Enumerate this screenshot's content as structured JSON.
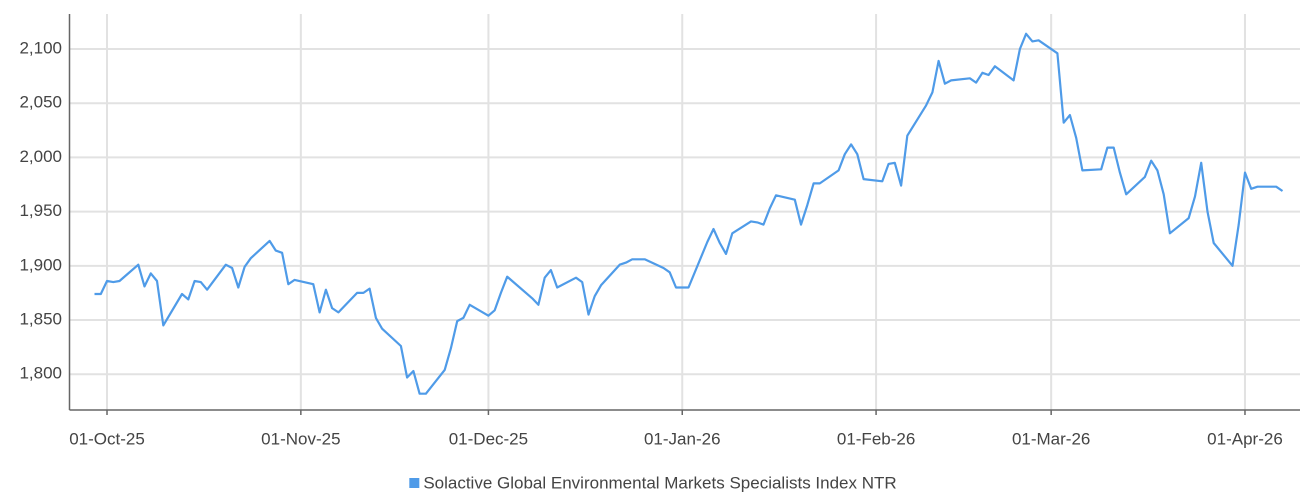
{
  "chart_data": {
    "type": "line",
    "x": [
      "2025-09-29",
      "2025-09-30",
      "2025-10-01",
      "2025-10-02",
      "2025-10-03",
      "2025-10-06",
      "2025-10-07",
      "2025-10-08",
      "2025-10-09",
      "2025-10-10",
      "2025-10-13",
      "2025-10-14",
      "2025-10-15",
      "2025-10-16",
      "2025-10-17",
      "2025-10-20",
      "2025-10-21",
      "2025-10-22",
      "2025-10-23",
      "2025-10-24",
      "2025-10-27",
      "2025-10-28",
      "2025-10-29",
      "2025-10-30",
      "2025-10-31",
      "2025-11-03",
      "2025-11-04",
      "2025-11-05",
      "2025-11-06",
      "2025-11-07",
      "2025-11-10",
      "2025-11-11",
      "2025-11-12",
      "2025-11-13",
      "2025-11-14",
      "2025-11-17",
      "2025-11-18",
      "2025-11-19",
      "2025-11-20",
      "2025-11-21",
      "2025-11-24",
      "2025-11-25",
      "2025-11-26",
      "2025-11-27",
      "2025-11-28",
      "2025-12-01",
      "2025-12-02",
      "2025-12-03",
      "2025-12-04",
      "2025-12-08",
      "2025-12-09",
      "2025-12-10",
      "2025-12-11",
      "2025-12-12",
      "2025-12-15",
      "2025-12-16",
      "2025-12-17",
      "2025-12-18",
      "2025-12-19",
      "2025-12-22",
      "2025-12-23",
      "2025-12-24",
      "2025-12-26",
      "2025-12-29",
      "2025-12-30",
      "2025-12-31",
      "2026-01-02",
      "2026-01-05",
      "2026-01-06",
      "2026-01-07",
      "2026-01-08",
      "2026-01-09",
      "2026-01-12",
      "2026-01-13",
      "2026-01-14",
      "2026-01-15",
      "2026-01-16",
      "2026-01-19",
      "2026-01-20",
      "2026-01-21",
      "2026-01-22",
      "2026-01-23",
      "2026-01-26",
      "2026-01-27",
      "2026-01-28",
      "2026-01-29",
      "2026-01-30",
      "2026-02-02",
      "2026-02-03",
      "2026-02-04",
      "2026-02-05",
      "2026-02-06",
      "2026-02-09",
      "2026-02-10",
      "2026-02-11",
      "2026-02-12",
      "2026-02-13",
      "2026-02-16",
      "2026-02-17",
      "2026-02-18",
      "2026-02-19",
      "2026-02-20",
      "2026-02-23",
      "2026-02-24",
      "2026-02-25",
      "2026-02-26",
      "2026-02-27",
      "2026-03-02",
      "2026-03-03",
      "2026-03-04",
      "2026-03-05",
      "2026-03-06",
      "2026-03-09",
      "2026-03-10",
      "2026-03-11",
      "2026-03-12",
      "2026-03-13",
      "2026-03-16",
      "2026-03-17",
      "2026-03-18",
      "2026-03-19",
      "2026-03-20",
      "2026-03-23",
      "2026-03-24",
      "2026-03-25",
      "2026-03-26",
      "2026-03-27",
      "2026-03-30",
      "2026-03-31",
      "2026-04-01",
      "2026-04-02",
      "2026-04-03",
      "2026-04-06",
      "2026-04-07"
    ],
    "series": [
      {
        "name": "Solactive Global Environmental Markets Specialists Index NTR",
        "color": "#4f9be8",
        "values": [
          1874,
          1874,
          1886,
          1885,
          1886,
          1901,
          1881,
          1893,
          1886,
          1845,
          1874,
          1869,
          1886,
          1885,
          1878,
          1901,
          1898,
          1880,
          1899,
          1907,
          1923,
          1914,
          1912,
          1883,
          1887,
          1883,
          1857,
          1878,
          1861,
          1857,
          1875,
          1875,
          1879,
          1852,
          1842,
          1826,
          1797,
          1803,
          1782,
          1782,
          1804,
          1824,
          1849,
          1852,
          1864,
          1854,
          1859,
          1875,
          1890,
          1870,
          1864,
          1889,
          1896,
          1880,
          1889,
          1885,
          1855,
          1872,
          1882,
          1901,
          1903,
          1906,
          1906,
          1898,
          1894,
          1880,
          1880,
          1922,
          1934,
          1921,
          1911,
          1930,
          1941,
          1940,
          1938,
          1953,
          1965,
          1961,
          1938,
          1956,
          1976,
          1976,
          1988,
          2003,
          2012,
          2003,
          1980,
          1978,
          1994,
          1995,
          1974,
          2020,
          2048,
          2060,
          2089,
          2068,
          2071,
          2073,
          2069,
          2078,
          2076,
          2084,
          2071,
          2100,
          2114,
          2107,
          2108,
          2096,
          2032,
          2039,
          2018,
          1988,
          1989,
          2009,
          2009,
          1986,
          1966,
          1982,
          1997,
          1988,
          1966,
          1930,
          1944,
          1964,
          1995,
          1950,
          1921,
          1900,
          1938,
          1986,
          1971,
          1973,
          1973,
          1969
        ]
      }
    ],
    "xlim": [
      "2025-09-25",
      "2026-04-09"
    ],
    "xticks": [
      {
        "value": "2025-10-01",
        "label": "01-Oct-25"
      },
      {
        "value": "2025-11-01",
        "label": "01-Nov-25"
      },
      {
        "value": "2025-12-01",
        "label": "01-Dec-25"
      },
      {
        "value": "2026-01-01",
        "label": "01-Jan-26"
      },
      {
        "value": "2026-02-01",
        "label": "01-Feb-26"
      },
      {
        "value": "2026-03-01",
        "label": "01-Mar-26"
      },
      {
        "value": "2026-04-01",
        "label": "01-Apr-26"
      }
    ],
    "ylim": [
      1767,
      2132
    ],
    "yticks": [
      {
        "value": 1800,
        "label": "1,800"
      },
      {
        "value": 1850,
        "label": "1,850"
      },
      {
        "value": 1900,
        "label": "1,900"
      },
      {
        "value": 1950,
        "label": "1,950"
      },
      {
        "value": 2000,
        "label": "2,000"
      },
      {
        "value": 2050,
        "label": "2,050"
      },
      {
        "value": 2100,
        "label": "2,100"
      }
    ],
    "grid": true,
    "legend": "bottom"
  }
}
